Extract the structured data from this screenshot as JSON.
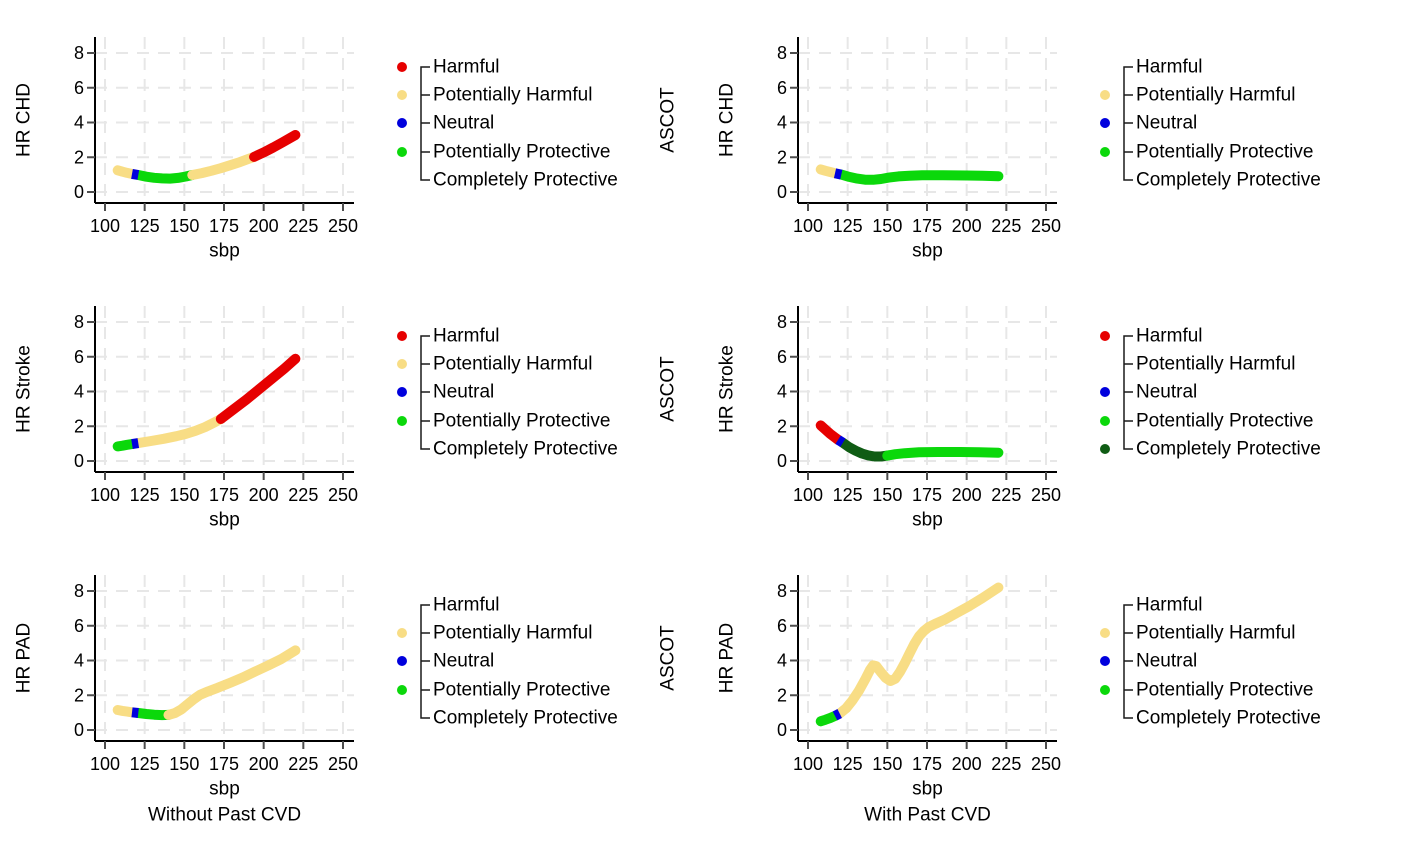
{
  "figure": {
    "background": "#ffffff",
    "row_side_label": "ASCOT"
  },
  "colors": {
    "harmful": "#e60000",
    "potentially_harmful": "#f8dd85",
    "neutral": "#0000dd",
    "potentially_protective": "#0bd80b",
    "completely_protective": "#0f5c14"
  },
  "legend": {
    "items": [
      {
        "id": "harmful",
        "label": "Harmful"
      },
      {
        "id": "potentially_harmful",
        "label": "Potentially Harmful"
      },
      {
        "id": "neutral",
        "label": "Neutral"
      },
      {
        "id": "potentially_protective",
        "label": "Potentially Protective"
      },
      {
        "id": "completely_protective",
        "label": "Completely Protective"
      }
    ]
  },
  "chart_data": {
    "type": "line",
    "x_axis": {
      "label": "sbp",
      "ticks": [
        100,
        125,
        150,
        175,
        200,
        225,
        250
      ],
      "range": [
        93,
        260
      ]
    },
    "y_axis": {
      "label": "HR",
      "ticks": [
        0,
        2,
        4,
        6,
        8
      ],
      "range": [
        -0.6,
        8.9
      ]
    },
    "grid": true,
    "columns": [
      "Without Past CVD",
      "With Past CVD"
    ],
    "panels": [
      {
        "id": "chd-without-past-cvd",
        "row": 0,
        "col": 0,
        "y_label": "HR CHD",
        "x_label": "sbp",
        "column_label": null,
        "right_label": "ASCOT",
        "legend_marker_ids": [
          "harmful",
          "potentially_harmful",
          "neutral",
          "potentially_protective"
        ],
        "segments": [
          {
            "category": "potentially_harmful",
            "points": [
              [
                108,
                1.25
              ],
              [
                111,
                1.17
              ],
              [
                114,
                1.1
              ],
              [
                117,
                1.04
              ]
            ]
          },
          {
            "category": "neutral",
            "points": [
              [
                117,
                1.04
              ],
              [
                121,
                0.98
              ]
            ]
          },
          {
            "category": "potentially_protective",
            "points": [
              [
                121,
                0.98
              ],
              [
                126,
                0.88
              ],
              [
                131,
                0.82
              ],
              [
                136,
                0.78
              ],
              [
                141,
                0.77
              ],
              [
                146,
                0.81
              ],
              [
                151,
                0.89
              ],
              [
                155,
                0.98
              ]
            ]
          },
          {
            "category": "potentially_harmful",
            "points": [
              [
                155,
                0.98
              ],
              [
                161,
                1.09
              ],
              [
                167,
                1.22
              ],
              [
                173,
                1.37
              ],
              [
                179,
                1.54
              ],
              [
                185,
                1.72
              ],
              [
                191,
                1.92
              ],
              [
                194,
                2.02
              ]
            ]
          },
          {
            "category": "harmful",
            "points": [
              [
                194,
                2.02
              ],
              [
                200,
                2.28
              ],
              [
                206,
                2.56
              ],
              [
                212,
                2.86
              ],
              [
                220,
                3.28
              ]
            ]
          }
        ]
      },
      {
        "id": "chd-with-past-cvd",
        "row": 0,
        "col": 1,
        "y_label": "HR CHD",
        "x_label": "sbp",
        "column_label": null,
        "right_label": null,
        "legend_marker_ids": [
          "potentially_harmful",
          "neutral",
          "potentially_protective"
        ],
        "segments": [
          {
            "category": "potentially_harmful",
            "points": [
              [
                108,
                1.3
              ],
              [
                111,
                1.22
              ],
              [
                114,
                1.15
              ],
              [
                117,
                1.08
              ]
            ]
          },
          {
            "category": "neutral",
            "points": [
              [
                117,
                1.08
              ],
              [
                121,
                1.0
              ]
            ]
          },
          {
            "category": "potentially_protective",
            "points": [
              [
                121,
                1.0
              ],
              [
                126,
                0.87
              ],
              [
                131,
                0.77
              ],
              [
                136,
                0.71
              ],
              [
                141,
                0.7
              ],
              [
                146,
                0.75
              ],
              [
                151,
                0.83
              ],
              [
                157,
                0.9
              ],
              [
                164,
                0.94
              ],
              [
                172,
                0.96
              ],
              [
                185,
                0.96
              ],
              [
                200,
                0.95
              ],
              [
                210,
                0.93
              ],
              [
                220,
                0.91
              ]
            ]
          }
        ]
      },
      {
        "id": "stroke-without-past-cvd",
        "row": 1,
        "col": 0,
        "y_label": "HR Stroke",
        "x_label": "sbp",
        "column_label": null,
        "right_label": "ASCOT",
        "legend_marker_ids": [
          "harmful",
          "potentially_harmful",
          "neutral",
          "potentially_protective"
        ],
        "segments": [
          {
            "category": "potentially_protective",
            "points": [
              [
                108,
                0.84
              ],
              [
                111,
                0.88
              ],
              [
                114,
                0.93
              ],
              [
                117,
                0.97
              ]
            ]
          },
          {
            "category": "neutral",
            "points": [
              [
                117,
                0.97
              ],
              [
                121,
                1.03
              ]
            ]
          },
          {
            "category": "potentially_harmful",
            "points": [
              [
                121,
                1.03
              ],
              [
                129,
                1.15
              ],
              [
                137,
                1.28
              ],
              [
                145,
                1.43
              ],
              [
                151,
                1.56
              ],
              [
                157,
                1.73
              ],
              [
                163,
                1.95
              ],
              [
                169,
                2.22
              ],
              [
                173,
                2.42
              ]
            ]
          },
          {
            "category": "harmful",
            "points": [
              [
                173,
                2.42
              ],
              [
                181,
                2.97
              ],
              [
                189,
                3.52
              ],
              [
                197,
                4.12
              ],
              [
                205,
                4.72
              ],
              [
                213,
                5.32
              ],
              [
                220,
                5.88
              ]
            ]
          }
        ]
      },
      {
        "id": "stroke-with-past-cvd",
        "row": 1,
        "col": 1,
        "y_label": "HR Stroke",
        "x_label": "sbp",
        "column_label": null,
        "right_label": null,
        "legend_marker_ids": [
          "harmful",
          "neutral",
          "potentially_protective",
          "completely_protective"
        ],
        "segments": [
          {
            "category": "harmful",
            "points": [
              [
                108,
                2.05
              ],
              [
                111,
                1.8
              ],
              [
                114,
                1.56
              ],
              [
                117,
                1.35
              ],
              [
                119,
                1.22
              ]
            ]
          },
          {
            "category": "neutral",
            "points": [
              [
                119,
                1.22
              ],
              [
                122,
                1.05
              ]
            ]
          },
          {
            "category": "completely_protective",
            "points": [
              [
                122,
                1.05
              ],
              [
                126,
                0.79
              ],
              [
                130,
                0.59
              ],
              [
                134,
                0.43
              ],
              [
                138,
                0.32
              ],
              [
                142,
                0.26
              ],
              [
                146,
                0.26
              ],
              [
                150,
                0.31
              ]
            ]
          },
          {
            "category": "potentially_protective",
            "points": [
              [
                150,
                0.31
              ],
              [
                155,
                0.39
              ],
              [
                161,
                0.45
              ],
              [
                170,
                0.5
              ],
              [
                182,
                0.52
              ],
              [
                196,
                0.52
              ],
              [
                208,
                0.5
              ],
              [
                220,
                0.48
              ]
            ]
          }
        ]
      },
      {
        "id": "pad-without-past-cvd",
        "row": 2,
        "col": 0,
        "y_label": "HR PAD",
        "x_label": "sbp",
        "column_label": "Without Past CVD",
        "right_label": "ASCOT",
        "legend_marker_ids": [
          "potentially_harmful",
          "neutral",
          "potentially_protective"
        ],
        "segments": [
          {
            "category": "potentially_harmful",
            "points": [
              [
                108,
                1.15
              ],
              [
                111,
                1.1
              ],
              [
                114,
                1.06
              ],
              [
                117,
                1.02
              ]
            ]
          },
          {
            "category": "neutral",
            "points": [
              [
                117,
                1.02
              ],
              [
                121,
                0.98
              ]
            ]
          },
          {
            "category": "potentially_protective",
            "points": [
              [
                121,
                0.98
              ],
              [
                126,
                0.92
              ],
              [
                131,
                0.88
              ],
              [
                136,
                0.86
              ],
              [
                140,
                0.87
              ]
            ]
          },
          {
            "category": "potentially_harmful",
            "points": [
              [
                140,
                0.87
              ],
              [
                144,
                0.97
              ],
              [
                148,
                1.18
              ],
              [
                152,
                1.48
              ],
              [
                156,
                1.78
              ],
              [
                160,
                2.03
              ],
              [
                165,
                2.22
              ],
              [
                171,
                2.43
              ],
              [
                179,
                2.72
              ],
              [
                187,
                3.03
              ],
              [
                195,
                3.38
              ],
              [
                203,
                3.72
              ],
              [
                211,
                4.08
              ],
              [
                220,
                4.58
              ]
            ]
          }
        ]
      },
      {
        "id": "pad-with-past-cvd",
        "row": 2,
        "col": 1,
        "y_label": "HR PAD",
        "x_label": "sbp",
        "column_label": "With Past CVD",
        "right_label": null,
        "legend_marker_ids": [
          "potentially_harmful",
          "neutral",
          "potentially_protective"
        ],
        "segments": [
          {
            "category": "potentially_protective",
            "points": [
              [
                108,
                0.5
              ],
              [
                111,
                0.59
              ],
              [
                114,
                0.69
              ],
              [
                117,
                0.81
              ]
            ]
          },
          {
            "category": "neutral",
            "points": [
              [
                117,
                0.81
              ],
              [
                120,
                0.95
              ]
            ]
          },
          {
            "category": "potentially_harmful",
            "points": [
              [
                120,
                0.95
              ],
              [
                124,
                1.25
              ],
              [
                128,
                1.7
              ],
              [
                132,
                2.25
              ],
              [
                136,
                2.9
              ],
              [
                139,
                3.45
              ],
              [
                141,
                3.72
              ],
              [
                143,
                3.68
              ],
              [
                146,
                3.32
              ],
              [
                149,
                3.0
              ],
              [
                152,
                2.82
              ],
              [
                155,
                2.95
              ],
              [
                158,
                3.35
              ],
              [
                161,
                3.85
              ],
              [
                164,
                4.4
              ],
              [
                167,
                4.95
              ],
              [
                170,
                5.4
              ],
              [
                173,
                5.7
              ],
              [
                176,
                5.92
              ],
              [
                180,
                6.1
              ],
              [
                186,
                6.35
              ],
              [
                194,
                6.75
              ],
              [
                202,
                7.15
              ],
              [
                210,
                7.6
              ],
              [
                220,
                8.2
              ]
            ]
          }
        ]
      }
    ]
  }
}
